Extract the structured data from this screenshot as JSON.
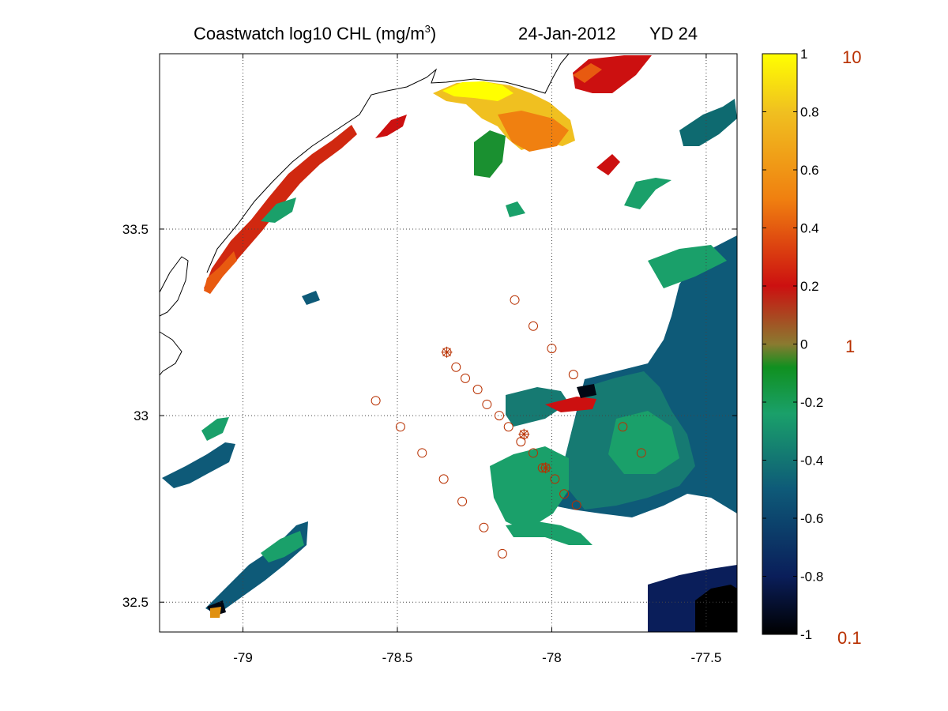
{
  "title": {
    "left": "Coastwatch  log10  CHL (mg/m",
    "superscript": "3",
    "right_paren": ")",
    "date": "24-Jan-2012",
    "yearday": "YD 24"
  },
  "map": {
    "lon_range": [
      -79.27,
      -77.4
    ],
    "lat_range": [
      32.42,
      33.97
    ],
    "x_ticks": [
      "-79",
      "-78.5",
      "-78",
      "-77.5"
    ],
    "x_tick_values": [
      -79,
      -78.5,
      -78,
      -77.5
    ],
    "y_ticks": [
      "32.5",
      "33",
      "33.5"
    ],
    "y_tick_values": [
      32.5,
      33,
      33.5
    ],
    "grid": "dotted",
    "stations_circle": [
      [
        -78.12,
        33.31
      ],
      [
        -78.06,
        33.24
      ],
      [
        -78.0,
        33.18
      ],
      [
        -77.93,
        33.11
      ],
      [
        -78.31,
        33.13
      ],
      [
        -78.28,
        33.1
      ],
      [
        -78.24,
        33.07
      ],
      [
        -78.21,
        33.03
      ],
      [
        -78.17,
        33.0
      ],
      [
        -78.14,
        32.97
      ],
      [
        -78.1,
        32.93
      ],
      [
        -78.06,
        32.9
      ],
      [
        -78.03,
        32.86
      ],
      [
        -77.99,
        32.83
      ],
      [
        -77.96,
        32.79
      ],
      [
        -77.92,
        32.76
      ],
      [
        -78.57,
        33.04
      ],
      [
        -78.49,
        32.97
      ],
      [
        -78.42,
        32.9
      ],
      [
        -78.35,
        32.83
      ],
      [
        -78.29,
        32.77
      ],
      [
        -78.22,
        32.7
      ],
      [
        -78.16,
        32.63
      ],
      [
        -77.77,
        32.97
      ],
      [
        -77.71,
        32.9
      ]
    ],
    "stations_star": [
      [
        -78.34,
        33.17
      ],
      [
        -78.09,
        32.95
      ],
      [
        -78.02,
        32.86
      ]
    ],
    "colors": {
      "ocean": "#ffffff",
      "coast": "#000000",
      "station": "#b83000"
    }
  },
  "colorbar": {
    "ticks": [
      "1",
      "0.8",
      "0.6",
      "0.4",
      "0.2",
      "0",
      "-0.2",
      "-0.4",
      "-0.6",
      "-0.8",
      "-1"
    ],
    "values": [
      1,
      0.8,
      0.6,
      0.4,
      0.2,
      0,
      -0.2,
      -0.4,
      -0.6,
      -0.8,
      -1
    ],
    "linear_labels": [
      "10",
      "1",
      "0.1"
    ],
    "stops": [
      "#000000",
      "#0a1e5a",
      "#0e5a78",
      "#1aa06a",
      "#109020",
      "#8a7a30",
      "#cc1010",
      "#f08010",
      "#f0c020",
      "#ffff00"
    ]
  }
}
